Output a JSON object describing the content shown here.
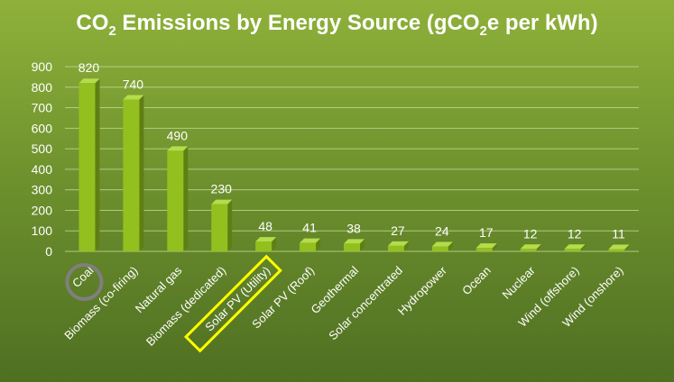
{
  "chart_data": {
    "type": "bar",
    "title_prefix": "CO",
    "title_sub1": "2",
    "title_mid": " Emissions by Energy Source (gCO",
    "title_sub2": "2",
    "title_suffix": "e per kWh)",
    "categories": [
      "Coal",
      "Biomass (co-firing)",
      "Natural gas",
      "Biomass (dedicated)",
      "Solar PV (Utility)",
      "Solar PV (Roof)",
      "Geothermal",
      "Solar concentrated",
      "Hydropower",
      "Ocean",
      "Nuclear",
      "Wind (offshore)",
      "Wind (onshore)"
    ],
    "values": [
      820,
      740,
      490,
      230,
      48,
      41,
      38,
      27,
      24,
      17,
      12,
      12,
      11
    ],
    "data_labels": [
      "820",
      "740",
      "490",
      "230",
      "48",
      "41",
      "38",
      "27",
      "24",
      "17",
      "12",
      "12",
      "11"
    ],
    "yticks": [
      "0",
      "100",
      "200",
      "300",
      "400",
      "500",
      "600",
      "700",
      "800",
      "900"
    ],
    "ylim": [
      0,
      900
    ],
    "grid": true,
    "annotations": [
      {
        "type": "circle",
        "category": "Coal",
        "color": "#7f7f7f"
      },
      {
        "type": "box",
        "category": "Solar PV (Utility)",
        "color": "#ffff00"
      }
    ],
    "colors": {
      "bar_front": "#93c01f",
      "bar_side": "#5f7f14",
      "bar_top": "#b5dc4a",
      "text": "#ffffff",
      "grid": "#c6d896"
    }
  }
}
